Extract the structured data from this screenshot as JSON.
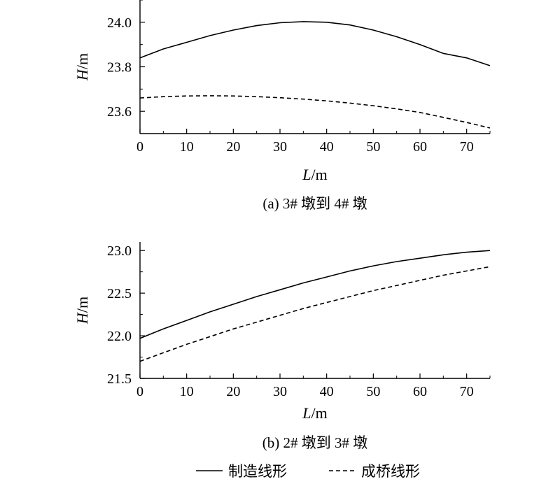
{
  "chart_data": [
    {
      "type": "line",
      "caption": "(a) 3# 墩到 4# 墩",
      "xlabel_var": "L",
      "xlabel_unit": "/m",
      "ylabel_var": "H",
      "ylabel_unit": "/m",
      "xlim": [
        0,
        75
      ],
      "ylim": [
        23.5,
        24.1
      ],
      "xticks": [
        0,
        10,
        20,
        30,
        40,
        50,
        60,
        70
      ],
      "yticks": [
        23.6,
        23.8,
        24.0
      ],
      "ytick_labels": [
        "23.6",
        "23.8",
        "24.0"
      ],
      "grid": false,
      "series": [
        {
          "name": "制造线形",
          "style": "solid",
          "x": [
            0,
            5,
            10,
            15,
            20,
            25,
            30,
            35,
            40,
            45,
            50,
            55,
            60,
            65,
            70,
            75
          ],
          "y": [
            23.84,
            23.88,
            23.91,
            23.94,
            23.965,
            23.985,
            23.998,
            24.003,
            24.0,
            23.988,
            23.965,
            23.935,
            23.9,
            23.86,
            23.84,
            23.805
          ]
        },
        {
          "name": "成桥线形",
          "style": "dashed",
          "x": [
            0,
            5,
            10,
            15,
            20,
            25,
            30,
            35,
            40,
            45,
            50,
            55,
            60,
            65,
            70,
            75
          ],
          "y": [
            23.66,
            23.666,
            23.669,
            23.67,
            23.669,
            23.666,
            23.661,
            23.655,
            23.647,
            23.637,
            23.625,
            23.611,
            23.595,
            23.573,
            23.55,
            23.525
          ]
        }
      ]
    },
    {
      "type": "line",
      "caption": "(b) 2# 墩到 3# 墩",
      "xlabel_var": "L",
      "xlabel_unit": "/m",
      "ylabel_var": "H",
      "ylabel_unit": "/m",
      "xlim": [
        0,
        75
      ],
      "ylim": [
        21.5,
        23.1
      ],
      "xticks": [
        0,
        10,
        20,
        30,
        40,
        50,
        60,
        70
      ],
      "yticks": [
        21.5,
        22.0,
        22.5,
        23.0
      ],
      "ytick_labels": [
        "21.5",
        "22.0",
        "22.5",
        "23.0"
      ],
      "grid": false,
      "series": [
        {
          "name": "制造线形",
          "style": "solid",
          "x": [
            0,
            5,
            10,
            15,
            20,
            25,
            30,
            35,
            40,
            45,
            50,
            55,
            60,
            65,
            70,
            75
          ],
          "y": [
            21.97,
            22.08,
            22.18,
            22.28,
            22.37,
            22.46,
            22.54,
            22.62,
            22.69,
            22.76,
            22.82,
            22.87,
            22.91,
            22.95,
            22.98,
            23.0
          ]
        },
        {
          "name": "成桥线形",
          "style": "dashed",
          "x": [
            0,
            5,
            10,
            15,
            20,
            25,
            30,
            35,
            40,
            45,
            50,
            55,
            60,
            65,
            70,
            75
          ],
          "y": [
            21.7,
            21.8,
            21.9,
            21.99,
            22.08,
            22.16,
            22.24,
            22.32,
            22.39,
            22.46,
            22.53,
            22.59,
            22.65,
            22.71,
            22.76,
            22.81
          ]
        }
      ]
    }
  ],
  "legend": {
    "placement": "bottom-center",
    "items": [
      {
        "label": "制造线形",
        "style": "solid"
      },
      {
        "label": "成桥线形",
        "style": "dashed"
      }
    ]
  }
}
